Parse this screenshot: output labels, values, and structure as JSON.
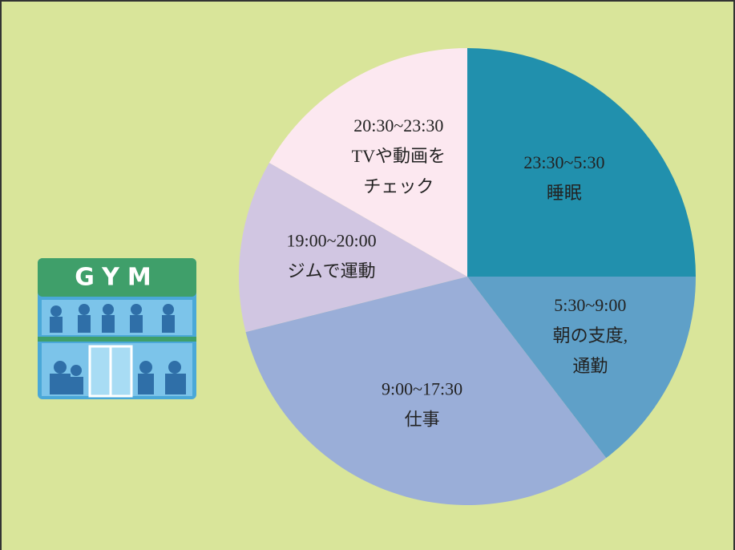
{
  "chart_data": {
    "type": "pie",
    "labels": [
      [
        "23:30~5:30",
        "睡眠"
      ],
      [
        "5:30~9:00",
        "朝の支度,",
        "通勤"
      ],
      [
        "9:00~17:30",
        "仕事"
      ],
      [
        "19:00~20:00",
        "ジムで運動"
      ],
      [
        "20:30~23:30",
        "TVや動画を",
        "チェック"
      ]
    ],
    "values": [
      25,
      14.6,
      31.5,
      12.2,
      16.7
    ],
    "colors": [
      "#2190ad",
      "#5fa0c8",
      "#9aaed8",
      "#d1c6e2",
      "#fce8f0"
    ],
    "start": "top",
    "direction": "clockwise"
  }
}
